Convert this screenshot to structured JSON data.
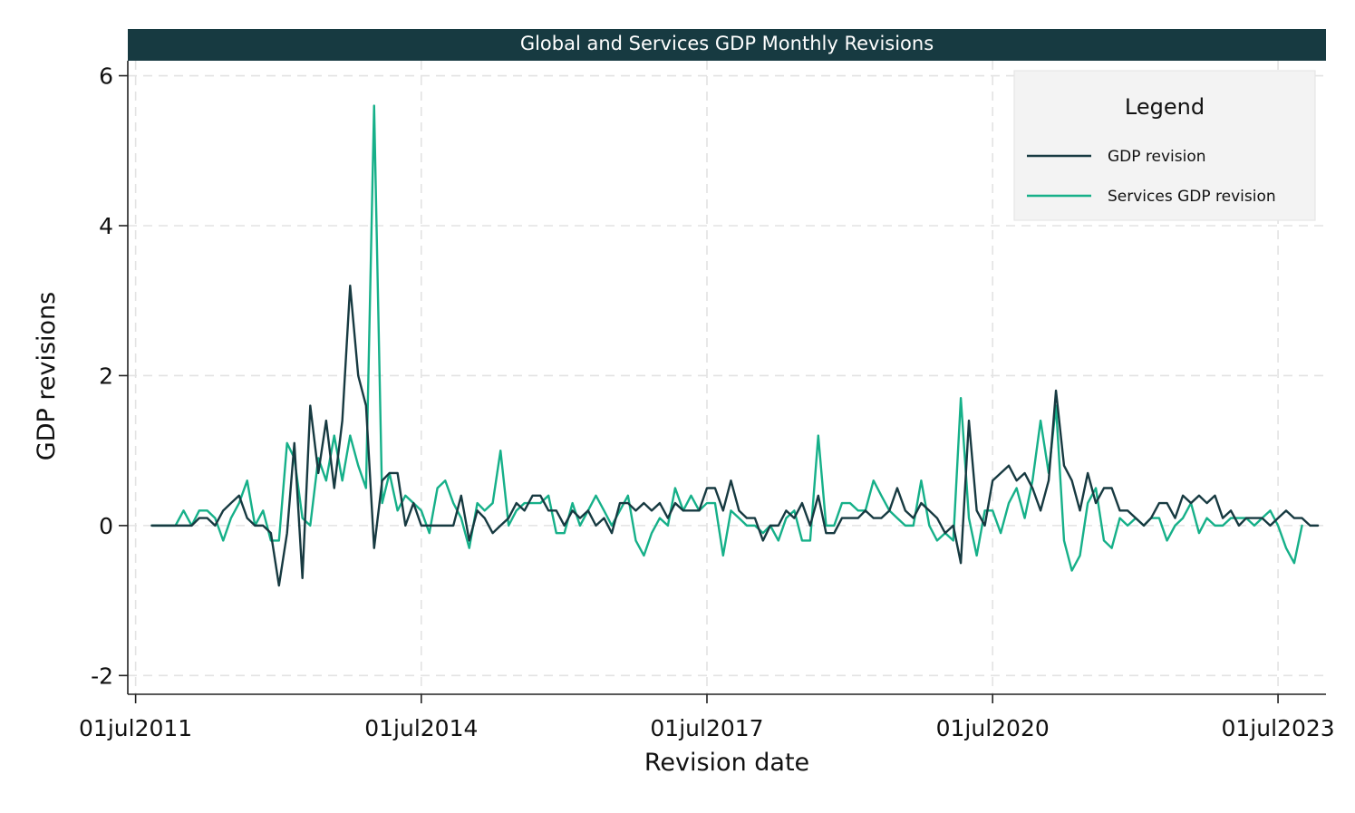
{
  "chart_data": {
    "type": "line",
    "title": "Global and Services GDP Monthly Revisions",
    "xlabel": "Revision date",
    "ylabel": "GDP revisions",
    "xlim": [
      "2011-06-01",
      "2024-01-01"
    ],
    "ylim": [
      -2.25,
      6.2
    ],
    "yticks": [
      -2,
      0,
      2,
      4,
      6
    ],
    "yticklabels": [
      "-2",
      "0",
      "2",
      "4",
      "6"
    ],
    "xticks": [
      "2011-07-01",
      "2014-07-01",
      "2017-07-01",
      "2020-07-01",
      "2023-07-01"
    ],
    "xticklabels": [
      "01jul2011",
      "01jul2014",
      "01jul2017",
      "01jul2020",
      "01jul2023"
    ],
    "grid": true,
    "legend": {
      "title": "Legend",
      "placement": "top-right"
    },
    "start_date": "2011-09-01",
    "frequency": "monthly",
    "colors": {
      "gdp": "#173a41",
      "services": "#16b089",
      "title_bg": "#173a41"
    },
    "series": [
      {
        "name": "GDP revision",
        "color": "#173a41",
        "values": [
          0,
          0,
          0,
          0,
          0,
          0,
          0.1,
          0.1,
          0,
          0.2,
          0.3,
          0.4,
          0.1,
          0,
          0,
          -0.1,
          -0.8,
          -0.1,
          1.1,
          -0.7,
          1.6,
          0.7,
          1.4,
          0.5,
          1.4,
          3.2,
          2.0,
          1.6,
          -0.3,
          0.6,
          0.7,
          0.7,
          0,
          0.3,
          0,
          0,
          0,
          0,
          0,
          0.4,
          -0.2,
          0.2,
          0.1,
          -0.1,
          0,
          0.1,
          0.3,
          0.2,
          0.4,
          0.4,
          0.2,
          0.2,
          0,
          0.2,
          0.1,
          0.2,
          0,
          0.1,
          -0.1,
          0.3,
          0.3,
          0.2,
          0.3,
          0.2,
          0.3,
          0.1,
          0.3,
          0.2,
          0.2,
          0.2,
          0.5,
          0.5,
          0.2,
          0.6,
          0.2,
          0.1,
          0.1,
          -0.2,
          0,
          0,
          0.2,
          0.1,
          0.3,
          0,
          0.4,
          -0.1,
          -0.1,
          0.1,
          0.1,
          0.1,
          0.2,
          0.1,
          0.1,
          0.2,
          0.5,
          0.2,
          0.1,
          0.3,
          0.2,
          0.1,
          -0.1,
          0,
          -0.5,
          1.4,
          0.2,
          0,
          0.6,
          0.7,
          0.8,
          0.6,
          0.7,
          0.5,
          0.2,
          0.6,
          1.8,
          0.8,
          0.6,
          0.2,
          0.7,
          0.3,
          0.5,
          0.5,
          0.2,
          0.2,
          0.1,
          0,
          0.1,
          0.3,
          0.3,
          0.1,
          0.4,
          0.3,
          0.4,
          0.3,
          0.4,
          0.1,
          0.2,
          0,
          0.1,
          0.1,
          0.1,
          0,
          0.1,
          0.2,
          0.1,
          0.1,
          0,
          0
        ]
      },
      {
        "name": "Services GDP revision",
        "color": "#16b089",
        "values": [
          0,
          0,
          0,
          0,
          0.2,
          0,
          0.2,
          0.2,
          0.1,
          -0.2,
          0.1,
          0.3,
          0.6,
          0,
          0.2,
          -0.2,
          -0.2,
          1.1,
          0.9,
          0.1,
          0,
          0.9,
          0.6,
          1.2,
          0.6,
          1.2,
          0.8,
          0.5,
          5.6,
          0.3,
          0.7,
          0.2,
          0.4,
          0.3,
          0.2,
          -0.1,
          0.5,
          0.6,
          0.3,
          0.1,
          -0.3,
          0.3,
          0.2,
          0.3,
          1.0,
          0,
          0.2,
          0.3,
          0.3,
          0.3,
          0.4,
          -0.1,
          -0.1,
          0.3,
          0,
          0.2,
          0.4,
          0.2,
          0,
          0.2,
          0.4,
          -0.2,
          -0.4,
          -0.1,
          0.1,
          0,
          0.5,
          0.2,
          0.4,
          0.2,
          0.3,
          0.3,
          -0.4,
          0.2,
          0.1,
          0,
          0,
          -0.1,
          0,
          -0.2,
          0.1,
          0.2,
          -0.2,
          -0.2,
          1.2,
          0,
          0,
          0.3,
          0.3,
          0.2,
          0.2,
          0.6,
          0.4,
          0.2,
          0.1,
          0,
          0,
          0.6,
          0,
          -0.2,
          -0.1,
          -0.2,
          1.7,
          0.1,
          -0.4,
          0.2,
          0.2,
          -0.1,
          0.3,
          0.5,
          0.1,
          0.6,
          1.4,
          0.7,
          1.6,
          -0.2,
          -0.6,
          -0.4,
          0.3,
          0.5,
          -0.2,
          -0.3,
          0.1,
          0,
          0.1,
          0,
          0.1,
          0.1,
          -0.2,
          0,
          0.1,
          0.3,
          -0.1,
          0.1,
          0,
          0,
          0.1,
          0.1,
          0.1,
          0,
          0.1,
          0.2,
          0,
          -0.3,
          -0.5,
          0
        ]
      }
    ]
  }
}
